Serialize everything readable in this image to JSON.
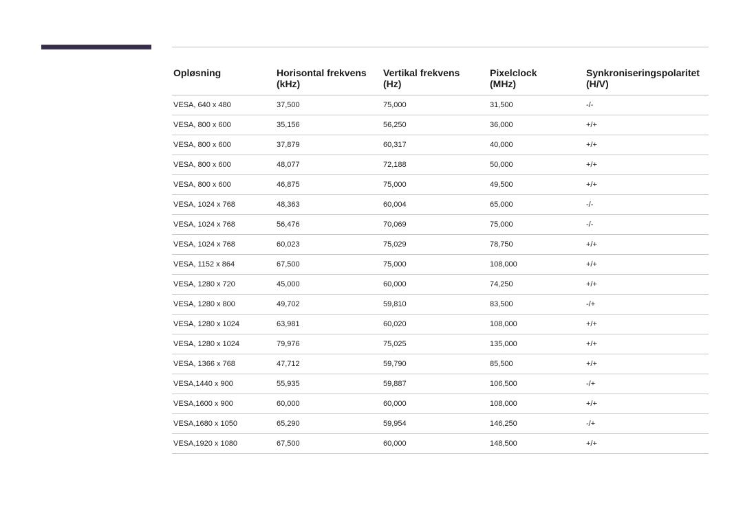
{
  "style": {
    "header_bar_color": "#3a2d4d",
    "rule_color": "rgba(0,0,0,0.25)",
    "row_border_color": "rgba(0,0,0,0.22)",
    "background_color": "#ffffff",
    "header_font_size_pt": 14,
    "body_font_size_pt": 11,
    "text_color": "#1a1a1a"
  },
  "table": {
    "type": "table",
    "columns": [
      {
        "label": "Opløsning",
        "unit": ""
      },
      {
        "label": "Horisontal frekvens",
        "unit": "(kHz)"
      },
      {
        "label": "Vertikal frekvens",
        "unit": "(Hz)"
      },
      {
        "label": "Pixelclock",
        "unit": "(MHz)"
      },
      {
        "label": "Synkroniseringspolaritet",
        "unit": "(H/V)"
      }
    ],
    "rows": [
      [
        "VESA, 640 x 480",
        "37,500",
        "75,000",
        "31,500",
        "-/-"
      ],
      [
        "VESA, 800 x 600",
        "35,156",
        "56,250",
        "36,000",
        "+/+"
      ],
      [
        "VESA, 800 x 600",
        "37,879",
        "60,317",
        "40,000",
        "+/+"
      ],
      [
        "VESA, 800 x 600",
        "48,077",
        "72,188",
        "50,000",
        "+/+"
      ],
      [
        "VESA, 800 x 600",
        "46,875",
        "75,000",
        "49,500",
        "+/+"
      ],
      [
        "VESA, 1024 x 768",
        "48,363",
        "60,004",
        "65,000",
        "-/-"
      ],
      [
        "VESA, 1024 x 768",
        "56,476",
        "70,069",
        "75,000",
        "-/-"
      ],
      [
        "VESA, 1024 x 768",
        "60,023",
        "75,029",
        "78,750",
        "+/+"
      ],
      [
        "VESA, 1152 x 864",
        "67,500",
        "75,000",
        "108,000",
        "+/+"
      ],
      [
        "VESA, 1280 x 720",
        "45,000",
        "60,000",
        "74,250",
        "+/+"
      ],
      [
        "VESA, 1280 x 800",
        "49,702",
        "59,810",
        "83,500",
        "-/+"
      ],
      [
        "VESA, 1280 x 1024",
        "63,981",
        "60,020",
        "108,000",
        "+/+"
      ],
      [
        "VESA, 1280 x 1024",
        "79,976",
        "75,025",
        "135,000",
        "+/+"
      ],
      [
        "VESA, 1366 x 768",
        "47,712",
        "59,790",
        "85,500",
        "+/+"
      ],
      [
        "VESA,1440 x 900",
        "55,935",
        "59,887",
        "106,500",
        "-/+"
      ],
      [
        "VESA,1600 x 900",
        "60,000",
        "60,000",
        "108,000",
        "+/+"
      ],
      [
        "VESA,1680 x 1050",
        "65,290",
        "59,954",
        "146,250",
        "-/+"
      ],
      [
        "VESA,1920 x 1080",
        "67,500",
        "60,000",
        "148,500",
        "+/+"
      ]
    ]
  }
}
